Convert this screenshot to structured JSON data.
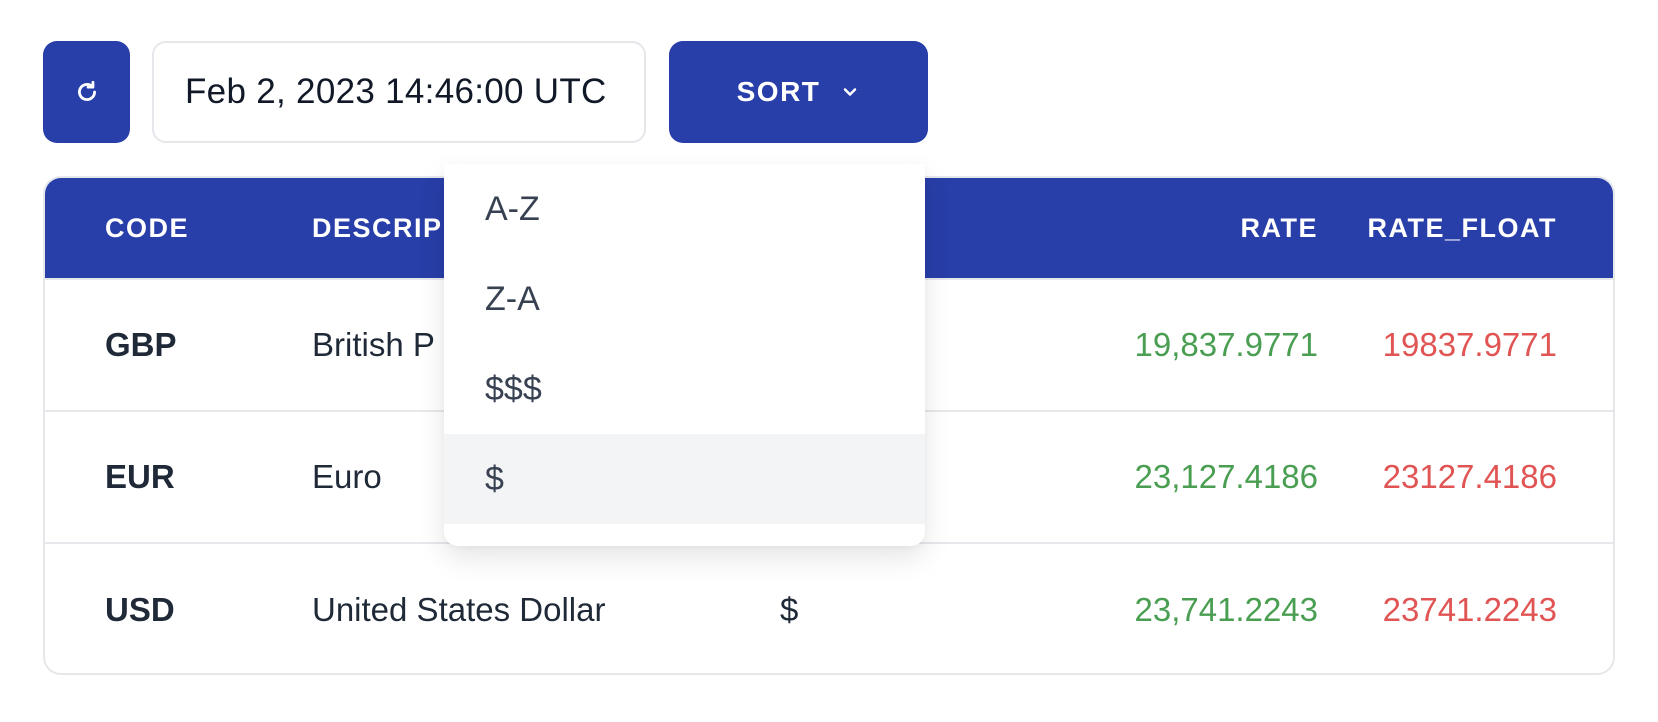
{
  "toolbar": {
    "refresh_icon": "refresh-icon",
    "date": "Feb 2, 2023 14:46:00 UTC",
    "sort_label": "SORT",
    "sort_chevron_icon": "chevron-down-icon"
  },
  "table": {
    "headers": {
      "code": "CODE",
      "description": "DESCRIP",
      "rate": "RATE",
      "rate_float": "RATE_FLOAT"
    },
    "rows": [
      {
        "code": "GBP",
        "description": "British P",
        "symbol": "",
        "rate": "19,837.9771",
        "rate_float": "19837.9771"
      },
      {
        "code": "EUR",
        "description": "Euro",
        "symbol": "",
        "rate": "23,127.4186",
        "rate_float": "23127.4186"
      },
      {
        "code": "USD",
        "description": "United States Dollar",
        "symbol": "$",
        "rate": "23,741.2243",
        "rate_float": "23741.2243"
      }
    ]
  },
  "sort_menu": {
    "items": [
      "A-Z",
      "Z-A",
      "$$$",
      "$"
    ],
    "highlighted_index": 3
  },
  "colors": {
    "primary": "#283ea8",
    "rate": "#4a9e52",
    "rate_float": "#e05454"
  }
}
